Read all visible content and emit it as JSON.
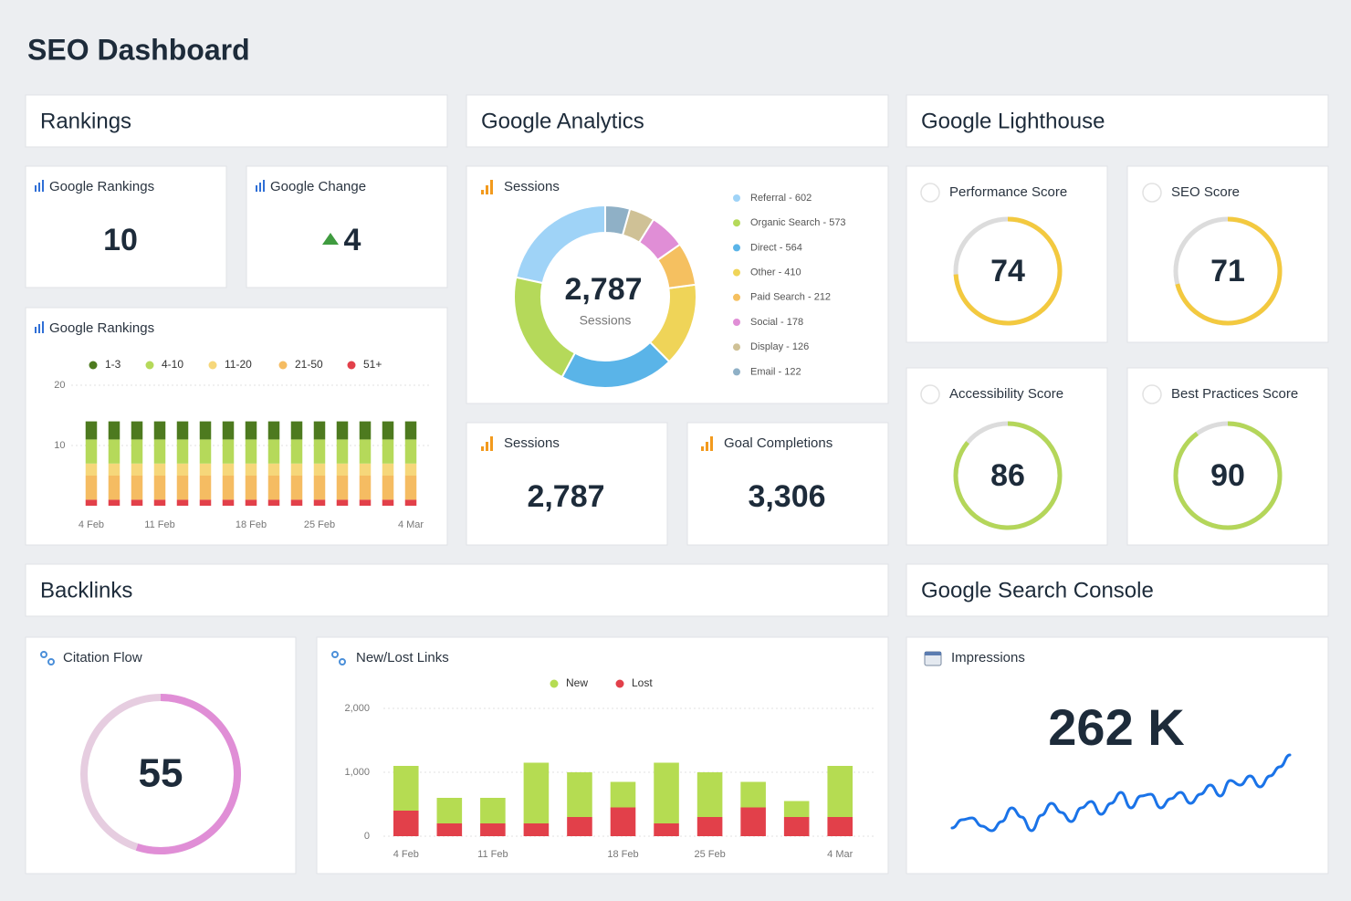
{
  "title": "SEO Dashboard",
  "sections": {
    "rankings": "Rankings",
    "analytics": "Google Analytics",
    "lighthouse": "Google Lighthouse",
    "backlinks": "Backlinks",
    "search_console": "Google Search Console"
  },
  "stats": [
    {
      "label": "Google Rankings",
      "value": 10
    },
    {
      "label": "Google Change",
      "value": 4
    },
    {
      "label": "Sessions",
      "value": "2,787"
    },
    {
      "label": "Goal Completions",
      "value": "3,306"
    },
    {
      "label": "Impressions",
      "value": "262 K"
    }
  ],
  "chart_data": [
    {
      "type": "stacked_bar",
      "title": "Google Rankings",
      "categories": [
        "4 Feb",
        null,
        null,
        "11 Feb",
        null,
        null,
        null,
        "18 Feb",
        null,
        null,
        "25 Feb",
        null,
        null,
        null,
        "4 Mar"
      ],
      "series": [
        {
          "name": "1-3",
          "color": "#4d7a1f",
          "values": [
            3,
            3,
            3,
            3,
            3,
            3,
            3,
            3,
            3,
            3,
            3,
            3,
            3,
            3,
            3
          ]
        },
        {
          "name": "4-10",
          "color": "#b5d95a",
          "values": [
            4,
            4,
            4,
            4,
            4,
            4,
            4,
            4,
            4,
            4,
            4,
            4,
            4,
            4,
            4
          ]
        },
        {
          "name": "11-20",
          "color": "#f6d77a",
          "values": [
            2,
            2,
            2,
            2,
            2,
            2,
            2,
            2,
            2,
            2,
            2,
            2,
            2,
            2,
            2
          ]
        },
        {
          "name": "21-50",
          "color": "#f5bc62",
          "values": [
            4,
            4,
            4,
            4,
            4,
            4,
            4,
            4,
            4,
            4,
            4,
            4,
            4,
            4,
            4
          ]
        },
        {
          "name": "51+",
          "color": "#e2404a",
          "values": [
            1,
            1,
            1,
            1,
            1,
            1,
            1,
            1,
            1,
            1,
            1,
            1,
            1,
            1,
            1
          ]
        }
      ],
      "ylim": [
        0,
        20
      ],
      "yticks": [
        10,
        20
      ],
      "grid": true
    },
    {
      "type": "donut",
      "title": "Sessions",
      "center_value": "2,787",
      "center_label": "Sessions",
      "categories": [
        "Referral - 602",
        "Organic Search - 573",
        "Direct - 564",
        "Other - 410",
        "Paid Search - 212",
        "Social - 178",
        "Display - 126",
        "Email - 122"
      ],
      "values": [
        602,
        573,
        564,
        410,
        212,
        178,
        126,
        122
      ],
      "colors": [
        "#9fd3f7",
        "#b5d95a",
        "#5ab4e8",
        "#efd458",
        "#f5c060",
        "#e08ed6",
        "#cfc196",
        "#8fb0c6"
      ]
    },
    {
      "type": "gauge",
      "title": "Performance Score",
      "value": 74,
      "ylim": [
        0,
        100
      ],
      "color": "#f3c93f",
      "track": "#dcdcdc"
    },
    {
      "type": "gauge",
      "title": "SEO Score",
      "value": 71,
      "ylim": [
        0,
        100
      ],
      "color": "#f3c93f",
      "track": "#dcdcdc"
    },
    {
      "type": "gauge",
      "title": "Accessibility Score",
      "value": 86,
      "ylim": [
        0,
        100
      ],
      "color": "#b4d65a",
      "track": "#dcdcdc"
    },
    {
      "type": "gauge",
      "title": "Best Practices Score",
      "value": 90,
      "ylim": [
        0,
        100
      ],
      "color": "#b4d65a",
      "track": "#dcdcdc"
    },
    {
      "type": "gauge",
      "title": "Citation Flow",
      "value": 55,
      "ylim": [
        0,
        100
      ],
      "color": "#e08ed6",
      "track": "#e6cde0"
    },
    {
      "type": "stacked_bar",
      "title": "New/Lost Links",
      "categories": [
        "4 Feb",
        null,
        "11 Feb",
        null,
        null,
        "18 Feb",
        null,
        "25 Feb",
        null,
        null,
        "4 Mar"
      ],
      "series": [
        {
          "name": "New",
          "color": "#b5dc52",
          "values": [
            700,
            400,
            400,
            950,
            700,
            400,
            950,
            700,
            400,
            250,
            800
          ]
        },
        {
          "name": "Lost",
          "color": "#e2404a",
          "values": [
            400,
            200,
            200,
            200,
            300,
            450,
            200,
            300,
            450,
            300,
            300
          ]
        }
      ],
      "ylim": [
        0,
        2000
      ],
      "yticks": [
        0,
        {
          "value": 1000,
          "label": "1,000"
        },
        {
          "value": 2000,
          "label": "2,000"
        }
      ],
      "grid": true
    },
    {
      "type": "line",
      "title": "Impressions",
      "color": "#1a73e8",
      "values": [
        13,
        22,
        24,
        15,
        10,
        20,
        35,
        25,
        10,
        27,
        40,
        30,
        20,
        35,
        42,
        28,
        40,
        52,
        35,
        48,
        50,
        35,
        45,
        52,
        40,
        50,
        60,
        48,
        65,
        60,
        70,
        58,
        70,
        80,
        93
      ]
    }
  ]
}
